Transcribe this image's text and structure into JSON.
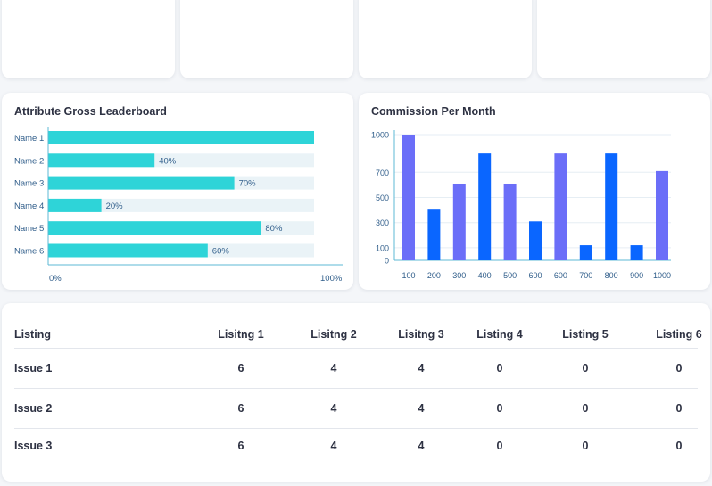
{
  "colors": {
    "bar_fill": "#2ed4d8",
    "bar_track": "#eaf3f7",
    "axis": "#5db8d6",
    "col_purple": "#6b6ef8",
    "col_blue": "#0a66ff",
    "tick_text": "#2f5d8a",
    "text": "#2d3142"
  },
  "leaderboard": {
    "title": "Attribute Gross Leaderboard",
    "chart_data": {
      "type": "bar",
      "orientation": "horizontal",
      "categories": [
        "Name 1",
        "Name 2",
        "Name 3",
        "Name 4",
        "Name 5",
        "Name 6"
      ],
      "values": [
        100,
        40,
        70,
        20,
        80,
        60
      ],
      "data_labels": [
        "",
        "40%",
        "70%",
        "20%",
        "80%",
        "60%"
      ],
      "xlim": [
        0,
        100
      ],
      "x_tick_labels": [
        "0%",
        "100%"
      ],
      "grid": false
    }
  },
  "commission": {
    "title": "Commission Per Month",
    "chart_data": {
      "type": "bar",
      "categories": [
        "100",
        "200",
        "300",
        "400",
        "500",
        "600",
        "600",
        "700",
        "800",
        "900",
        "1000"
      ],
      "values": [
        1000,
        410,
        610,
        850,
        610,
        310,
        850,
        120,
        850,
        120,
        710
      ],
      "ylim": [
        0,
        1000
      ],
      "y_tick_labels": [
        "0",
        "100",
        "300",
        "500",
        "700",
        "1000"
      ],
      "grid": true,
      "bar_colors": [
        "purple",
        "blue",
        "purple",
        "blue",
        "purple",
        "blue",
        "purple",
        "blue",
        "blue",
        "blue",
        "purple"
      ]
    }
  },
  "table": {
    "columns": [
      "Listing",
      "Lisitng 1",
      "Lisitng 2",
      "Lisitng 3",
      "Listing 4",
      "Listing 5",
      "Listing 6"
    ],
    "rows": [
      {
        "label": "Issue 1",
        "values": [
          "6",
          "4",
          "4",
          "0",
          "0",
          "0"
        ]
      },
      {
        "label": "Issue 2",
        "values": [
          "6",
          "4",
          "4",
          "0",
          "0",
          "0"
        ]
      },
      {
        "label": "Issue 3",
        "values": [
          "6",
          "4",
          "4",
          "0",
          "0",
          "0"
        ]
      }
    ]
  }
}
